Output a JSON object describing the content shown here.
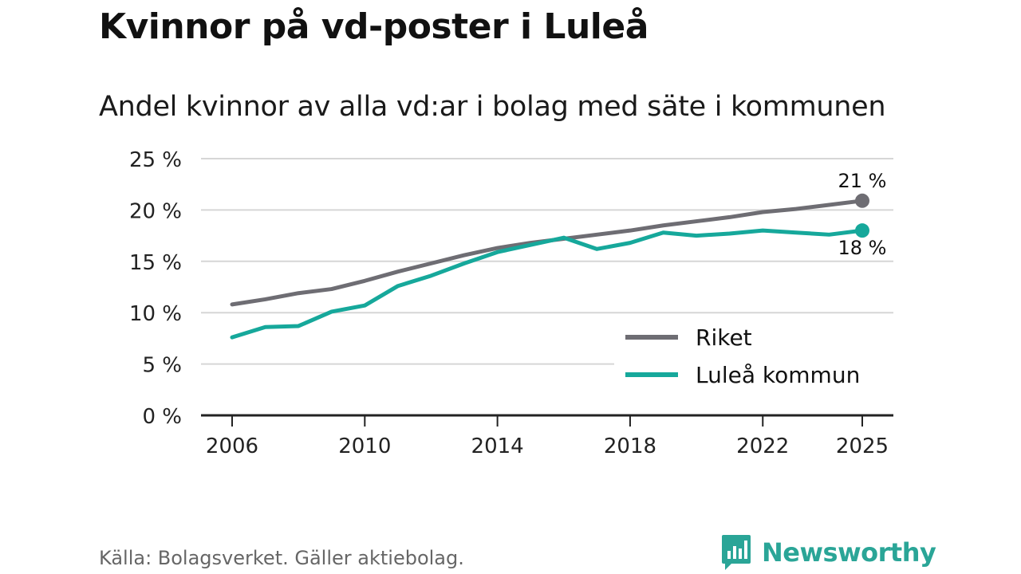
{
  "title": "Kvinnor på vd-poster i Luleå",
  "subtitle": "Andel kvinnor av alla vd:ar i bolag med säte i kommunen",
  "source": "Källa: Bolagsverket. Gäller aktiebolag.",
  "brand": {
    "name": "Newsworthy",
    "icon": "bar-chart-speech-bubble-icon",
    "color": "#2aa597"
  },
  "chart_data": {
    "type": "line",
    "title": "Kvinnor på vd-poster i Luleå",
    "subtitle": "Andel kvinnor av alla vd:ar i bolag med säte i kommunen",
    "xlabel": "",
    "ylabel": "",
    "x": [
      2006,
      2007,
      2008,
      2009,
      2010,
      2011,
      2012,
      2013,
      2014,
      2015,
      2016,
      2017,
      2018,
      2019,
      2020,
      2021,
      2022,
      2023,
      2024,
      2025
    ],
    "ylim": [
      0,
      25
    ],
    "y_ticks": [
      0,
      5,
      10,
      15,
      20,
      25
    ],
    "y_tick_labels": [
      "0 %",
      "5 %",
      "10 %",
      "15 %",
      "20 %",
      "25 %"
    ],
    "x_ticks": [
      2006,
      2010,
      2014,
      2018,
      2022,
      2025
    ],
    "x_tick_labels": [
      "2006",
      "2010",
      "2014",
      "2018",
      "2022",
      "2025"
    ],
    "grid": true,
    "legend_position": "bottom-right",
    "series": [
      {
        "name": "Riket",
        "color": "#6e6d73",
        "values": [
          10.8,
          11.3,
          11.9,
          12.3,
          13.1,
          14.0,
          14.8,
          15.6,
          16.3,
          16.8,
          17.2,
          17.6,
          18.0,
          18.5,
          18.9,
          19.3,
          19.8,
          20.1,
          20.5,
          20.9
        ],
        "end_label": "21 %"
      },
      {
        "name": "Luleå kommun",
        "color": "#16a89b",
        "values": [
          7.6,
          8.6,
          8.7,
          10.1,
          10.7,
          12.6,
          13.6,
          14.8,
          15.9,
          16.6,
          17.3,
          16.2,
          16.8,
          17.8,
          17.5,
          17.7,
          18.0,
          17.8,
          17.6,
          18.0
        ],
        "end_label": "18 %"
      }
    ]
  }
}
